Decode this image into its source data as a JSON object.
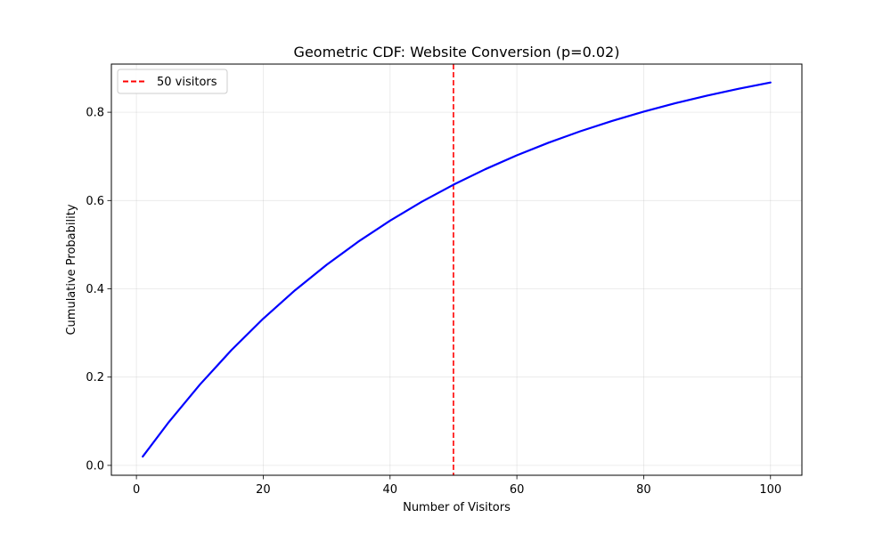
{
  "chart_data": {
    "type": "line",
    "title": "Geometric CDF: Website Conversion (p=0.02)",
    "xlabel": "Number of Visitors",
    "ylabel": "Cumulative Probability",
    "xlim": [
      -3.95,
      104.95
    ],
    "ylim": [
      -0.0224,
      0.9091
    ],
    "xticks": [
      0,
      20,
      40,
      60,
      80,
      100
    ],
    "yticks": [
      0.0,
      0.2,
      0.4,
      0.6,
      0.8
    ],
    "xtick_labels": [
      "0",
      "20",
      "40",
      "60",
      "80",
      "100"
    ],
    "ytick_labels": [
      "0.0",
      "0.2",
      "0.4",
      "0.6",
      "0.8"
    ],
    "grid": true,
    "legend_position": "top-left",
    "series": [
      {
        "color": "#0000ff",
        "x": [
          1,
          5,
          10,
          15,
          20,
          25,
          30,
          35,
          40,
          45,
          50,
          55,
          60,
          65,
          70,
          75,
          80,
          85,
          90,
          95,
          100
        ],
        "y": [
          0.02,
          0.0961,
          0.1829,
          0.2614,
          0.3324,
          0.3965,
          0.4545,
          0.5069,
          0.5543,
          0.5972,
          0.6358,
          0.6708,
          0.7024,
          0.731,
          0.7569,
          0.7802,
          0.8014,
          0.8204,
          0.8377,
          0.8533,
          0.8674
        ]
      }
    ],
    "reference_lines": [
      {
        "name": "50 visitors",
        "orientation": "vertical",
        "x": 50,
        "color": "#ff0000",
        "style": "dashed"
      }
    ]
  }
}
